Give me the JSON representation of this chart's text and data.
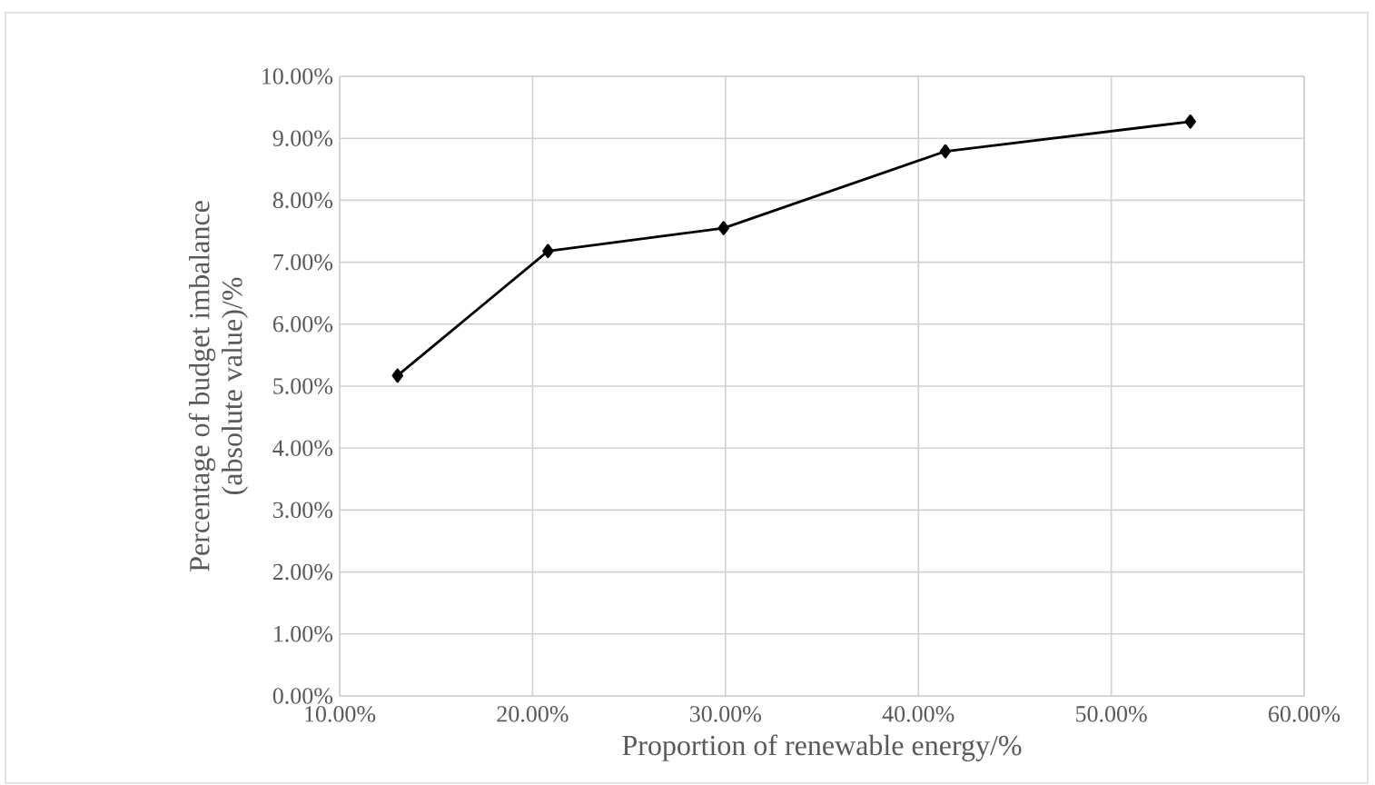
{
  "chart_data": {
    "type": "line",
    "xlabel": "Proportion of renewable energy/%",
    "ylabel": "Percentage of budget imbalance\n(absolute value)/%",
    "x": [
      13.0,
      20.8,
      29.9,
      41.4,
      54.1
    ],
    "series": [
      {
        "color": "#000000",
        "values": [
          5.17,
          7.18,
          7.55,
          8.79,
          9.27
        ]
      }
    ],
    "xlim": [
      10,
      60
    ],
    "xticks": [
      {
        "value": 10,
        "label": "10.00%"
      },
      {
        "value": 20,
        "label": "20.00%"
      },
      {
        "value": 30,
        "label": "30.00%"
      },
      {
        "value": 40,
        "label": "40.00%"
      },
      {
        "value": 50,
        "label": "50.00%"
      },
      {
        "value": 60,
        "label": "60.00%"
      }
    ],
    "ylim": [
      0,
      10
    ],
    "yticks": [
      {
        "value": 0,
        "label": "0.00%"
      },
      {
        "value": 1,
        "label": "1.00%"
      },
      {
        "value": 2,
        "label": "2.00%"
      },
      {
        "value": 3,
        "label": "3.00%"
      },
      {
        "value": 4,
        "label": "4.00%"
      },
      {
        "value": 5,
        "label": "5.00%"
      },
      {
        "value": 6,
        "label": "6.00%"
      },
      {
        "value": 7,
        "label": "7.00%"
      },
      {
        "value": 8,
        "label": "8.00%"
      },
      {
        "value": 9,
        "label": "9.00%"
      },
      {
        "value": 10,
        "label": "10.00%"
      }
    ],
    "grid": true,
    "marker": "diamond",
    "line_style": "solid"
  }
}
